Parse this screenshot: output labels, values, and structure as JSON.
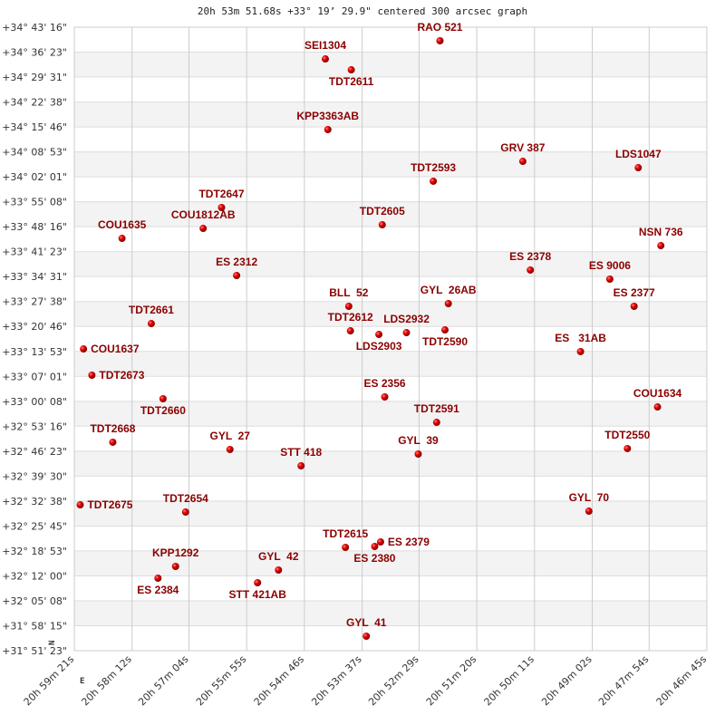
{
  "chart_data": {
    "type": "scatter",
    "title": "20h 53m 51.68s +33° 19’ 29.9\" centered 300 arcsec graph",
    "x_axis": {
      "unit": "right ascension",
      "direction": "decreasing to the right",
      "range": [
        "20h 59m 21s",
        "20h 46m 45s"
      ],
      "tick_labels": [
        "20h 59m 21s",
        "20h 58m 12s",
        "20h 57m 04s",
        "20h 55m 55s",
        "20h 54m 46s",
        "20h 53m 37s",
        "20h 52m 29s",
        "20h 51m 20s",
        "20h 50m 11s",
        "20h 49m 02s",
        "20h 47m 54s",
        "20h 46m 45s"
      ]
    },
    "y_axis": {
      "unit": "declination",
      "range": [
        "+31° 51' 23\"",
        "+34° 43' 16\""
      ],
      "tick_labels": [
        "+34° 43' 16\"",
        "+34° 36' 23\"",
        "+34° 29' 31\"",
        "+34° 22' 38\"",
        "+34° 15' 46\"",
        "+34° 08' 53\"",
        "+34° 02' 01\"",
        "+33° 55' 08\"",
        "+33° 48' 16\"",
        "+33° 41' 23\"",
        "+33° 34' 31\"",
        "+33° 27' 38\"",
        "+33° 20' 46\"",
        "+33° 13' 53\"",
        "+33° 07' 01\"",
        "+33° 00' 08\"",
        "+32° 53' 16\"",
        "+32° 46' 23\"",
        "+32° 39' 30\"",
        "+32° 32' 38\"",
        "+32° 25' 45\"",
        "+32° 18' 53\"",
        "+32° 12' 00\"",
        "+32° 05' 08\"",
        "+31° 58' 15\"",
        "+31° 51' 23\""
      ]
    },
    "grid": true,
    "alternating_bands": true,
    "compass": {
      "north": "N",
      "east": "E"
    },
    "colors": {
      "label": "#8b0000",
      "marker": "#dd0000",
      "grid": "#cccccc",
      "band": "#f3f3f3"
    },
    "points": [
      {
        "name": "RAO 521",
        "ra": "20h 52m 04s",
        "dec": "+34° 39' 31\""
      },
      {
        "name": "SEI1304",
        "ra": "20h 54m 21s",
        "dec": "+34° 34' 31\""
      },
      {
        "name": "TDT2611",
        "ra": "20h 53m 50s",
        "dec": "+34° 31' 31\""
      },
      {
        "name": "KPP3363AB",
        "ra": "20h 54m 18s",
        "dec": "+34° 15' 02\""
      },
      {
        "name": "GRV 387",
        "ra": "20h 50m 25s",
        "dec": "+34° 06' 17\""
      },
      {
        "name": "LDS1047",
        "ra": "20h 48m 07s",
        "dec": "+34° 04' 32\""
      },
      {
        "name": "TDT2593",
        "ra": "20h 52m 12s",
        "dec": "+34° 00' 48\""
      },
      {
        "name": "TDT2647",
        "ra": "20h 56m 25s",
        "dec": "+33° 53' 33\""
      },
      {
        "name": "COU1812AB",
        "ra": "20h 56m 47s",
        "dec": "+33° 47' 48\""
      },
      {
        "name": "TDT2605",
        "ra": "20h 53m 13s",
        "dec": "+33° 48' 48\""
      },
      {
        "name": "COU1635",
        "ra": "20h 58m 24s",
        "dec": "+33° 45' 03\""
      },
      {
        "name": "NSN 736",
        "ra": "20h 47m 40s",
        "dec": "+33° 43' 03\""
      },
      {
        "name": "ES 2378",
        "ra": "20h 50m 16s",
        "dec": "+33° 36' 19\""
      },
      {
        "name": "ES 2312",
        "ra": "20h 56m 07s",
        "dec": "+33° 34' 49\""
      },
      {
        "name": "ES 9006",
        "ra": "20h 48m 41s",
        "dec": "+33° 33' 49\""
      },
      {
        "name": "ES 2377",
        "ra": "20h 48m 12s",
        "dec": "+33° 26' 19\""
      },
      {
        "name": "GYL  26AB",
        "ra": "20h 51m 54s",
        "dec": "+33° 27' 04\""
      },
      {
        "name": "BLL  52",
        "ra": "20h 53m 53s",
        "dec": "+33° 26' 19\""
      },
      {
        "name": "TDT2612",
        "ra": "20h 53m 51s",
        "dec": "+33° 19' 34\""
      },
      {
        "name": "LDS2903",
        "ra": "20h 53m 17s",
        "dec": "+33° 18' 34\""
      },
      {
        "name": "LDS2932",
        "ra": "20h 52m 44s",
        "dec": "+33° 19' 04\""
      },
      {
        "name": "TDT2590",
        "ra": "20h 51m 58s",
        "dec": "+33° 19' 49\""
      },
      {
        "name": "TDT2661",
        "ra": "20h 57m 49s",
        "dec": "+33° 21' 34\""
      },
      {
        "name": "COU1637",
        "ra": "20h 59m 10s",
        "dec": "+33° 14' 34\""
      },
      {
        "name": "ES   31AB",
        "ra": "20h 49m 16s",
        "dec": "+33° 13' 50\""
      },
      {
        "name": "TDT2673",
        "ra": "20h 59m 00s",
        "dec": "+33° 07' 20\""
      },
      {
        "name": "TDT2660",
        "ra": "20h 57m 35s",
        "dec": "+33° 00' 50\""
      },
      {
        "name": "ES 2356",
        "ra": "20h 53m 10s",
        "dec": "+33° 01' 20\""
      },
      {
        "name": "COU1634",
        "ra": "20h 47m 44s",
        "dec": "+32° 58' 35\""
      },
      {
        "name": "TDT2591",
        "ra": "20h 52m 08s",
        "dec": "+32° 54' 20\""
      },
      {
        "name": "TDT2668",
        "ra": "20h 58m 35s",
        "dec": "+32° 48' 51\""
      },
      {
        "name": "GYL  27",
        "ra": "20h 56m 15s",
        "dec": "+32° 46' 51\""
      },
      {
        "name": "TDT2550",
        "ra": "20h 48m 20s",
        "dec": "+32° 47' 06\""
      },
      {
        "name": "GYL  39",
        "ra": "20h 52m 30s",
        "dec": "+32° 45' 36\""
      },
      {
        "name": "STT 418",
        "ra": "20h 54m 50s",
        "dec": "+32° 42' 21\""
      },
      {
        "name": "TDT2675",
        "ra": "20h 59m 14s",
        "dec": "+32° 31' 36\""
      },
      {
        "name": "TDT2654",
        "ra": "20h 57m 08s",
        "dec": "+32° 29' 36\""
      },
      {
        "name": "GYL  70",
        "ra": "20h 49m 06s",
        "dec": "+32° 29' 51\""
      },
      {
        "name": "TDT2615",
        "ra": "20h 53m 57s",
        "dec": "+32° 19' 52\""
      },
      {
        "name": "ES 2380",
        "ra": "20h 53m 22s",
        "dec": "+32° 20' 07\""
      },
      {
        "name": "ES 2379",
        "ra": "20h 53m 15s",
        "dec": "+32° 21' 22\""
      },
      {
        "name": "KPP1292",
        "ra": "20h 57m 20s",
        "dec": "+32° 14' 37\""
      },
      {
        "name": "ES 2384",
        "ra": "20h 57m 41s",
        "dec": "+32° 11' 22\""
      },
      {
        "name": "GYL  42",
        "ra": "20h 55m 17s",
        "dec": "+32° 13' 37\""
      },
      {
        "name": "STT 421AB",
        "ra": "20h 55m 42s",
        "dec": "+32° 10' 07\""
      },
      {
        "name": "GYL  41",
        "ra": "20h 53m 32s",
        "dec": "+31° 55' 23\""
      }
    ]
  }
}
